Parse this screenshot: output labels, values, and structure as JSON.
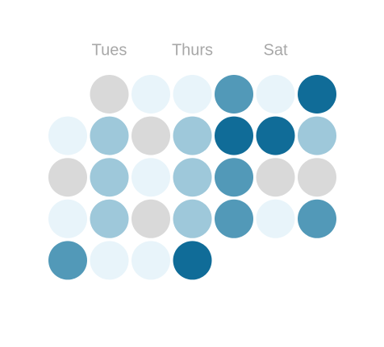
{
  "day_labels": [
    {
      "text": "Tues",
      "column": 1
    },
    {
      "text": "Thurs",
      "column": 3
    },
    {
      "text": "Sat",
      "column": 5
    }
  ],
  "cells": [
    [
      null,
      "#d9d9d9",
      "#e8f4fa",
      "#e8f4fa",
      "#5299b8",
      "#e8f4fa",
      "#106c98"
    ],
    [
      "#e8f4fa",
      "#9ec8da",
      "#d9d9d9",
      "#9ec8da",
      "#106c98",
      "#106c98",
      "#9ec8da"
    ],
    [
      "#d9d9d9",
      "#9ec8da",
      "#e8f4fa",
      "#9ec8da",
      "#5299b8",
      "#d9d9d9",
      "#d9d9d9"
    ],
    [
      "#e8f4fa",
      "#9ec8da",
      "#d9d9d9",
      "#9ec8da",
      "#5299b8",
      "#e8f4fa",
      "#5299b8"
    ],
    [
      "#5299b8",
      "#e8f4fa",
      "#e8f4fa",
      "#106c98",
      null,
      null,
      null
    ]
  ]
}
